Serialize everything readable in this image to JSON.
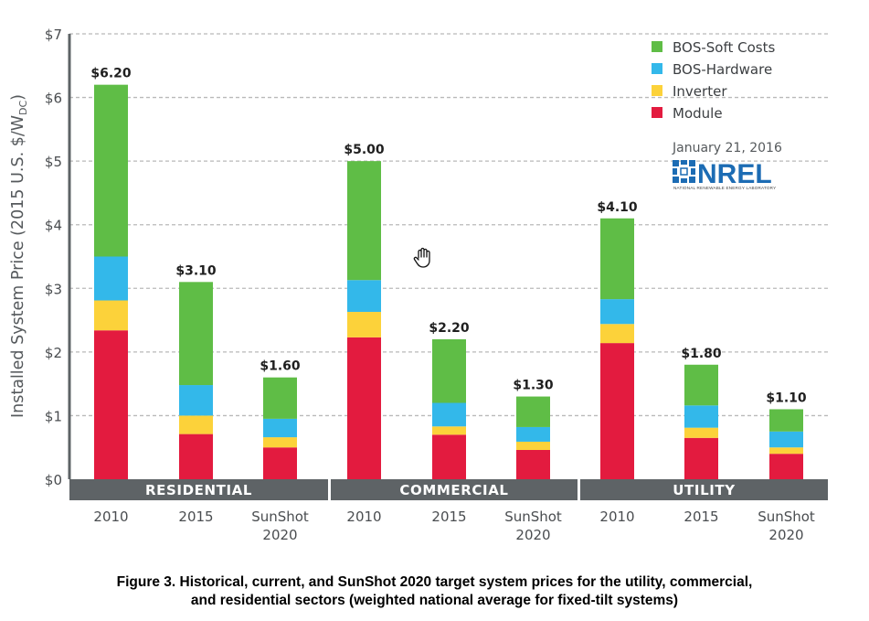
{
  "chart_data": {
    "type": "bar",
    "stacked": true,
    "title": "",
    "ylabel": "Installed System Price (2015 U.S. $/W",
    "ylabel_subscript": "DC",
    "ylabel_suffix": ")",
    "xlabel": "",
    "ylim": [
      0,
      7
    ],
    "yticks": [
      0,
      1,
      2,
      3,
      4,
      5,
      6,
      7
    ],
    "ytick_labels": [
      "$0",
      "$1",
      "$2",
      "$3",
      "$4",
      "$5",
      "$6",
      "$7"
    ],
    "grid": true,
    "legend_position": "top-right",
    "groups": [
      "RESIDENTIAL",
      "COMMERCIAL",
      "UTILITY"
    ],
    "categories": [
      {
        "group": "RESIDENTIAL",
        "label": [
          "2010"
        ]
      },
      {
        "group": "RESIDENTIAL",
        "label": [
          "2015"
        ]
      },
      {
        "group": "RESIDENTIAL",
        "label": [
          "SunShot",
          "2020"
        ]
      },
      {
        "group": "COMMERCIAL",
        "label": [
          "2010"
        ]
      },
      {
        "group": "COMMERCIAL",
        "label": [
          "2015"
        ]
      },
      {
        "group": "COMMERCIAL",
        "label": [
          "SunShot",
          "2020"
        ]
      },
      {
        "group": "UTILITY",
        "label": [
          "2010"
        ]
      },
      {
        "group": "UTILITY",
        "label": [
          "2015"
        ]
      },
      {
        "group": "UTILITY",
        "label": [
          "SunShot",
          "2020"
        ]
      }
    ],
    "series": [
      {
        "name": "Module",
        "color": "#e31b3f",
        "values": [
          2.34,
          0.71,
          0.5,
          2.23,
          0.7,
          0.46,
          2.14,
          0.65,
          0.4
        ]
      },
      {
        "name": "Inverter",
        "color": "#fcd23a",
        "values": [
          0.47,
          0.29,
          0.16,
          0.4,
          0.13,
          0.13,
          0.3,
          0.16,
          0.1
        ]
      },
      {
        "name": "BOS-Hardware",
        "color": "#33b8ea",
        "values": [
          0.69,
          0.48,
          0.29,
          0.5,
          0.37,
          0.23,
          0.39,
          0.35,
          0.25
        ]
      },
      {
        "name": "BOS-Soft Costs",
        "color": "#5fbd46",
        "values": [
          2.7,
          1.62,
          0.65,
          1.87,
          1.0,
          0.48,
          1.27,
          0.64,
          0.35
        ]
      }
    ],
    "totals": [
      6.2,
      3.1,
      1.6,
      5.0,
      2.2,
      1.3,
      4.1,
      1.8,
      1.1
    ],
    "total_labels": [
      "$6.20",
      "$3.10",
      "$1.60",
      "$5.00",
      "$2.20",
      "$1.30",
      "$4.10",
      "$1.80",
      "$1.10"
    ],
    "legend_order": [
      "BOS-Soft Costs",
      "BOS-Hardware",
      "Inverter",
      "Module"
    ],
    "annotations": {
      "date": "January 21, 2016",
      "logo_text": "NREL",
      "logo_subtext": "NATIONAL RENEWABLE ENERGY LABORATORY"
    }
  },
  "caption": {
    "line1": "Figure 3. Historical, current, and SunShot 2020 target system prices for the utility, commercial,",
    "line2": "and residential sectors (weighted national average for fixed-tilt systems)"
  },
  "colors": {
    "band": "#5e6366",
    "axis": "#5e6366",
    "grid": "#b9b9b9",
    "nrel_blue": "#1c6cb4"
  },
  "cursor": {
    "icon": "hand-grab-cursor-icon"
  }
}
